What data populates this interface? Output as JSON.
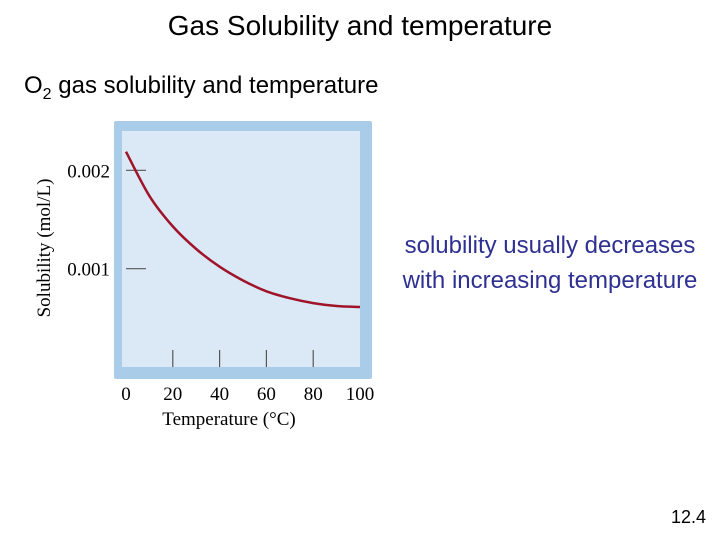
{
  "slide": {
    "title": "Gas Solubility and temperature",
    "subtitle_prefix": "O",
    "subtitle_subscript": "2",
    "subtitle_rest": " gas solubility and temperature",
    "note": "solubility usually decreases with increasing temperature",
    "page_number": "12.4"
  },
  "chart_data": {
    "type": "line",
    "title": "",
    "xlabel": "Temperature (°C)",
    "ylabel": "Solubility (mol/L)",
    "xlim": [
      0,
      100
    ],
    "ylim": [
      0,
      0.0024
    ],
    "x_ticks": [
      0,
      20,
      40,
      60,
      80,
      100
    ],
    "x_tick_labels": [
      "0",
      "20",
      "40",
      "60",
      "80",
      "100"
    ],
    "y_ticks": [
      0.001,
      0.002
    ],
    "y_tick_labels": [
      "0.001",
      "0.002"
    ],
    "grid": false,
    "legend": "none",
    "colors": {
      "line": "#a0142a",
      "plot_bg": "#dbe9f7",
      "frame": "#a9cde9"
    },
    "series": [
      {
        "x": [
          0,
          10,
          20,
          30,
          40,
          50,
          60,
          70,
          80,
          90,
          100
        ],
        "values": [
          0.00219,
          0.00174,
          0.00143,
          0.0012,
          0.00102,
          0.00088,
          0.00077,
          0.0007,
          0.00065,
          0.00062,
          0.00061
        ]
      }
    ]
  }
}
